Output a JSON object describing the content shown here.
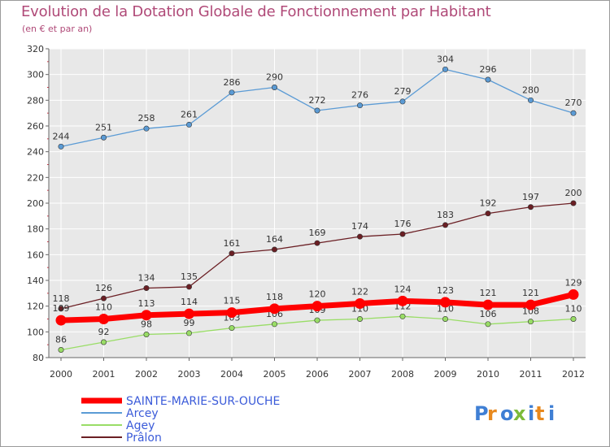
{
  "chart_data": {
    "type": "line",
    "title": "Evolution de la Dotation Globale de Fonctionnement par Habitant",
    "subtitle": "(en € et par an)",
    "xlabel": "",
    "ylabel": "",
    "ylim": [
      80,
      320
    ],
    "yticks": [
      80,
      100,
      120,
      140,
      160,
      180,
      200,
      220,
      240,
      260,
      280,
      300,
      320
    ],
    "categories": [
      "2000",
      "2001",
      "2002",
      "2003",
      "2004",
      "2005",
      "2006",
      "2007",
      "2008",
      "2009",
      "2010",
      "2011",
      "2012"
    ],
    "grid": true,
    "legend_position": "bottom-left",
    "series": [
      {
        "name": "SAINTE-MARIE-SUR-OUCHE",
        "color": "#ff0000",
        "values": [
          109,
          110,
          113,
          114,
          115,
          118,
          120,
          122,
          124,
          123,
          121,
          121,
          129
        ]
      },
      {
        "name": "Arcey",
        "color": "#5b9bd5",
        "values": [
          244,
          251,
          258,
          261,
          286,
          290,
          272,
          276,
          279,
          304,
          296,
          280,
          270
        ]
      },
      {
        "name": "Agey",
        "color": "#99dd66",
        "values": [
          86,
          92,
          98,
          99,
          103,
          106,
          109,
          110,
          112,
          110,
          106,
          108,
          110
        ]
      },
      {
        "name": "Prâlon",
        "color": "#6b1f24",
        "values": [
          118,
          126,
          134,
          135,
          161,
          164,
          169,
          174,
          176,
          183,
          192,
          197,
          200
        ]
      }
    ]
  },
  "logo": {
    "text": "Proxiti"
  }
}
